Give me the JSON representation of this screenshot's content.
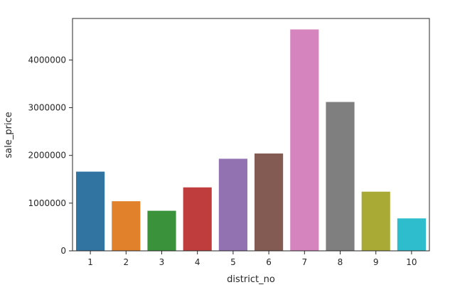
{
  "chart_data": {
    "type": "bar",
    "xlabel": "district_no",
    "ylabel": "sale_price",
    "categories": [
      "1",
      "2",
      "3",
      "4",
      "5",
      "6",
      "7",
      "8",
      "9",
      "10"
    ],
    "values": [
      1660000,
      1040000,
      840000,
      1330000,
      1930000,
      2040000,
      4640000,
      3120000,
      1240000,
      680000
    ],
    "colors": [
      "#3274a1",
      "#e1812c",
      "#3a923a",
      "#c03d3e",
      "#9372b2",
      "#845b53",
      "#d684bd",
      "#7f7f7f",
      "#a9aa35",
      "#2ebdcd"
    ],
    "ylim": [
      0,
      4870000
    ],
    "yticks": [
      0,
      1000000,
      2000000,
      3000000,
      4000000
    ],
    "ytick_labels": [
      "0",
      "1000000",
      "2000000",
      "3000000",
      "4000000"
    ],
    "grid": false,
    "legend": "none"
  }
}
